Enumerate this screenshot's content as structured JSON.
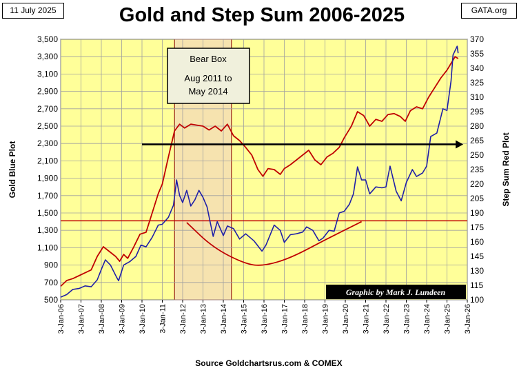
{
  "header": {
    "date": "11 July 2025",
    "title": "Gold and Step Sum 2006-2025",
    "brand": "GATA.org"
  },
  "footer": {
    "source": "Source  Goldchartsrus.com  & COMEX"
  },
  "annotations": {
    "bear_box_title": "Bear Box",
    "bear_box_line1": "Aug 2011 to",
    "bear_box_line2": "May 2014",
    "credit": "Graphic by Mark J. Lundeen"
  },
  "colors": {
    "plot_bg": "#ffff99",
    "bear_box_fill": "#f5deb3",
    "gold_series": "#1f1fa8",
    "step_sum_series": "#c00000",
    "reference_line": "#c00000",
    "arrow": "#000000",
    "grid": "#a0a0a0"
  },
  "chart_data": {
    "type": "line",
    "title": "Gold and Step Sum 2006-2025",
    "xlabel": "",
    "ylabel_left": "Gold    Blue Plot",
    "ylabel_right": "Step Sum    Red Plot",
    "x_ticks": [
      "3-Jan-06",
      "3-Jan-07",
      "3-Jan-08",
      "3-Jan-09",
      "3-Jan-10",
      "3-Jan-11",
      "3-Jan-12",
      "3-Jan-13",
      "3-Jan-14",
      "3-Jan-15",
      "3-Jan-16",
      "3-Jan-17",
      "3-Jan-18",
      "3-Jan-19",
      "3-Jan-20",
      "3-Jan-21",
      "3-Jan-22",
      "3-Jan-23",
      "3-Jan-24",
      "3-Jan-25",
      "3-Jan-26"
    ],
    "x_range": [
      2006,
      2026
    ],
    "y_left_ticks": [
      500,
      700,
      900,
      1100,
      1300,
      1500,
      1700,
      1900,
      2100,
      2300,
      2500,
      2700,
      2900,
      3100,
      3300,
      3500
    ],
    "y_left_range": [
      500,
      3500
    ],
    "y_right_ticks": [
      100,
      115,
      130,
      145,
      160,
      175,
      190,
      205,
      220,
      235,
      250,
      265,
      280,
      295,
      310,
      325,
      340,
      355,
      370
    ],
    "y_right_range": [
      100,
      370
    ],
    "grid": true,
    "bear_box": {
      "start": 2011.6,
      "end": 2014.4
    },
    "reference_level_gold": 1410,
    "arrow_level_gold": 2290,
    "arrow_span": [
      2010.0,
      2025.8
    ],
    "arc_points": [
      {
        "x": 2012.2,
        "gold": 1390
      },
      {
        "x": 2013.5,
        "gold": 1100
      },
      {
        "x": 2015.1,
        "gold": 910
      },
      {
        "x": 2016.0,
        "gold": 890
      },
      {
        "x": 2017.3,
        "gold": 980
      },
      {
        "x": 2019.0,
        "gold": 1190
      },
      {
        "x": 2020.8,
        "gold": 1400
      }
    ],
    "series": [
      {
        "name": "Gold",
        "axis": "left",
        "values": [
          [
            2006.0,
            530
          ],
          [
            2006.3,
            560
          ],
          [
            2006.6,
            620
          ],
          [
            2006.9,
            630
          ],
          [
            2007.2,
            660
          ],
          [
            2007.5,
            650
          ],
          [
            2007.8,
            730
          ],
          [
            2008.0,
            850
          ],
          [
            2008.2,
            960
          ],
          [
            2008.45,
            900
          ],
          [
            2008.75,
            760
          ],
          [
            2008.85,
            720
          ],
          [
            2009.1,
            900
          ],
          [
            2009.4,
            940
          ],
          [
            2009.7,
            1000
          ],
          [
            2009.95,
            1130
          ],
          [
            2010.2,
            1110
          ],
          [
            2010.5,
            1220
          ],
          [
            2010.8,
            1360
          ],
          [
            2011.0,
            1370
          ],
          [
            2011.3,
            1450
          ],
          [
            2011.55,
            1590
          ],
          [
            2011.7,
            1880
          ],
          [
            2011.85,
            1700
          ],
          [
            2012.0,
            1620
          ],
          [
            2012.2,
            1760
          ],
          [
            2012.4,
            1580
          ],
          [
            2012.6,
            1650
          ],
          [
            2012.8,
            1760
          ],
          [
            2013.0,
            1680
          ],
          [
            2013.2,
            1570
          ],
          [
            2013.35,
            1400
          ],
          [
            2013.5,
            1230
          ],
          [
            2013.7,
            1400
          ],
          [
            2014.0,
            1240
          ],
          [
            2014.2,
            1350
          ],
          [
            2014.5,
            1320
          ],
          [
            2014.8,
            1200
          ],
          [
            2015.1,
            1260
          ],
          [
            2015.5,
            1180
          ],
          [
            2015.9,
            1060
          ],
          [
            2016.1,
            1130
          ],
          [
            2016.5,
            1360
          ],
          [
            2016.8,
            1300
          ],
          [
            2017.0,
            1160
          ],
          [
            2017.3,
            1250
          ],
          [
            2017.6,
            1260
          ],
          [
            2017.9,
            1280
          ],
          [
            2018.1,
            1340
          ],
          [
            2018.4,
            1300
          ],
          [
            2018.7,
            1180
          ],
          [
            2018.9,
            1210
          ],
          [
            2019.2,
            1300
          ],
          [
            2019.45,
            1290
          ],
          [
            2019.7,
            1500
          ],
          [
            2019.95,
            1520
          ],
          [
            2020.2,
            1600
          ],
          [
            2020.4,
            1720
          ],
          [
            2020.6,
            2030
          ],
          [
            2020.8,
            1880
          ],
          [
            2021.0,
            1880
          ],
          [
            2021.2,
            1720
          ],
          [
            2021.5,
            1800
          ],
          [
            2021.8,
            1790
          ],
          [
            2022.0,
            1800
          ],
          [
            2022.2,
            2040
          ],
          [
            2022.5,
            1750
          ],
          [
            2022.75,
            1640
          ],
          [
            2023.0,
            1850
          ],
          [
            2023.3,
            2000
          ],
          [
            2023.5,
            1920
          ],
          [
            2023.8,
            1960
          ],
          [
            2024.0,
            2040
          ],
          [
            2024.2,
            2380
          ],
          [
            2024.5,
            2420
          ],
          [
            2024.8,
            2700
          ],
          [
            2025.0,
            2680
          ],
          [
            2025.2,
            3020
          ],
          [
            2025.3,
            3320
          ],
          [
            2025.5,
            3420
          ],
          [
            2025.55,
            3340
          ]
        ]
      },
      {
        "name": "Step Sum",
        "axis": "right",
        "values": [
          [
            2006.0,
            114
          ],
          [
            2006.3,
            120
          ],
          [
            2006.6,
            122
          ],
          [
            2006.9,
            125
          ],
          [
            2007.2,
            128
          ],
          [
            2007.5,
            131
          ],
          [
            2007.8,
            145
          ],
          [
            2008.1,
            155
          ],
          [
            2008.4,
            150
          ],
          [
            2008.7,
            145
          ],
          [
            2008.9,
            140
          ],
          [
            2009.1,
            147
          ],
          [
            2009.3,
            143
          ],
          [
            2009.6,
            155
          ],
          [
            2009.9,
            168
          ],
          [
            2010.2,
            170
          ],
          [
            2010.5,
            190
          ],
          [
            2010.8,
            210
          ],
          [
            2011.0,
            220
          ],
          [
            2011.3,
            248
          ],
          [
            2011.6,
            275
          ],
          [
            2011.85,
            282
          ],
          [
            2012.1,
            278
          ],
          [
            2012.4,
            282
          ],
          [
            2012.7,
            281
          ],
          [
            2013.0,
            280
          ],
          [
            2013.3,
            276
          ],
          [
            2013.6,
            280
          ],
          [
            2013.9,
            275
          ],
          [
            2014.2,
            282
          ],
          [
            2014.5,
            270
          ],
          [
            2014.8,
            265
          ],
          [
            2015.1,
            258
          ],
          [
            2015.4,
            250
          ],
          [
            2015.7,
            235
          ],
          [
            2015.95,
            228
          ],
          [
            2016.2,
            236
          ],
          [
            2016.5,
            235
          ],
          [
            2016.8,
            230
          ],
          [
            2017.0,
            236
          ],
          [
            2017.3,
            240
          ],
          [
            2017.6,
            245
          ],
          [
            2017.9,
            250
          ],
          [
            2018.2,
            255
          ],
          [
            2018.5,
            245
          ],
          [
            2018.8,
            240
          ],
          [
            2019.1,
            248
          ],
          [
            2019.4,
            252
          ],
          [
            2019.7,
            258
          ],
          [
            2019.95,
            268
          ],
          [
            2020.3,
            280
          ],
          [
            2020.6,
            295
          ],
          [
            2020.9,
            291
          ],
          [
            2021.2,
            280
          ],
          [
            2021.5,
            287
          ],
          [
            2021.8,
            285
          ],
          [
            2022.1,
            292
          ],
          [
            2022.4,
            293
          ],
          [
            2022.7,
            290
          ],
          [
            2022.95,
            285
          ],
          [
            2023.2,
            296
          ],
          [
            2023.5,
            300
          ],
          [
            2023.8,
            298
          ],
          [
            2024.1,
            310
          ],
          [
            2024.4,
            320
          ],
          [
            2024.7,
            330
          ],
          [
            2025.0,
            338
          ],
          [
            2025.2,
            345
          ],
          [
            2025.4,
            352
          ],
          [
            2025.55,
            350
          ]
        ]
      }
    ]
  }
}
